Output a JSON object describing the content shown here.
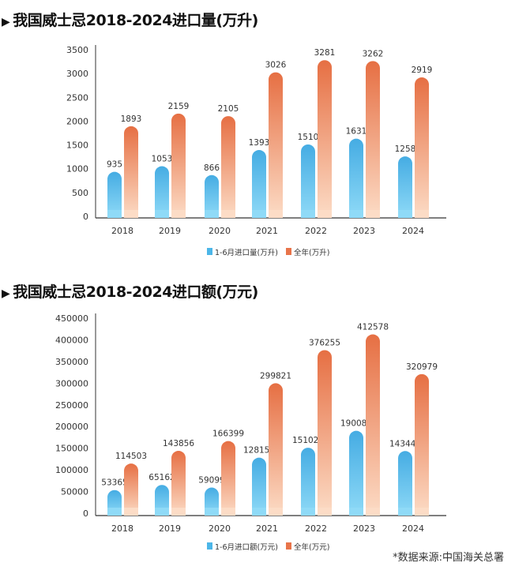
{
  "chart_data": [
    {
      "type": "bar",
      "title": "我国威士忌2018-2024进口量(万升)",
      "categories": [
        "2018",
        "2019",
        "2020",
        "2021",
        "2022",
        "2023",
        "2024"
      ],
      "series": [
        {
          "name": "1-6月进口量(万升)",
          "values": [
            935,
            1053,
            866,
            1393,
            1510,
            1631,
            1258
          ],
          "color": "#4cb6e8"
        },
        {
          "name": "全年(万升)",
          "values": [
            1893,
            2159,
            2105,
            3026,
            3281,
            3262,
            2919
          ],
          "color": "#e8744a"
        }
      ],
      "yticks": [
        0,
        500,
        1000,
        1500,
        2000,
        2500,
        3000,
        3500
      ],
      "ylim": [
        0,
        3500
      ],
      "xlabel": "",
      "ylabel": "",
      "legend": "bottom-center",
      "grid": false
    },
    {
      "type": "bar",
      "title": "我国威士忌2018-2024进口额(万元)",
      "categories": [
        "2018",
        "2019",
        "2020",
        "2021",
        "2022",
        "2023",
        "2024"
      ],
      "series": [
        {
          "name": "1-6月进口额(万元)",
          "values": [
            53365,
            65162,
            59099,
            128158,
            151020,
            190084,
            143441
          ],
          "color": "#4cb6e8"
        },
        {
          "name": "全年(万元)",
          "values": [
            114503,
            143856,
            166399,
            299821,
            376255,
            412578,
            320979
          ],
          "color": "#e8744a"
        }
      ],
      "yticks": [
        0,
        50000,
        100000,
        150000,
        200000,
        250000,
        300000,
        350000,
        400000,
        450000
      ],
      "ylim": [
        0,
        450000
      ],
      "xlabel": "",
      "ylabel": "",
      "legend": "bottom-center",
      "grid": false
    }
  ],
  "source": "*数据来源:中国海关总署"
}
